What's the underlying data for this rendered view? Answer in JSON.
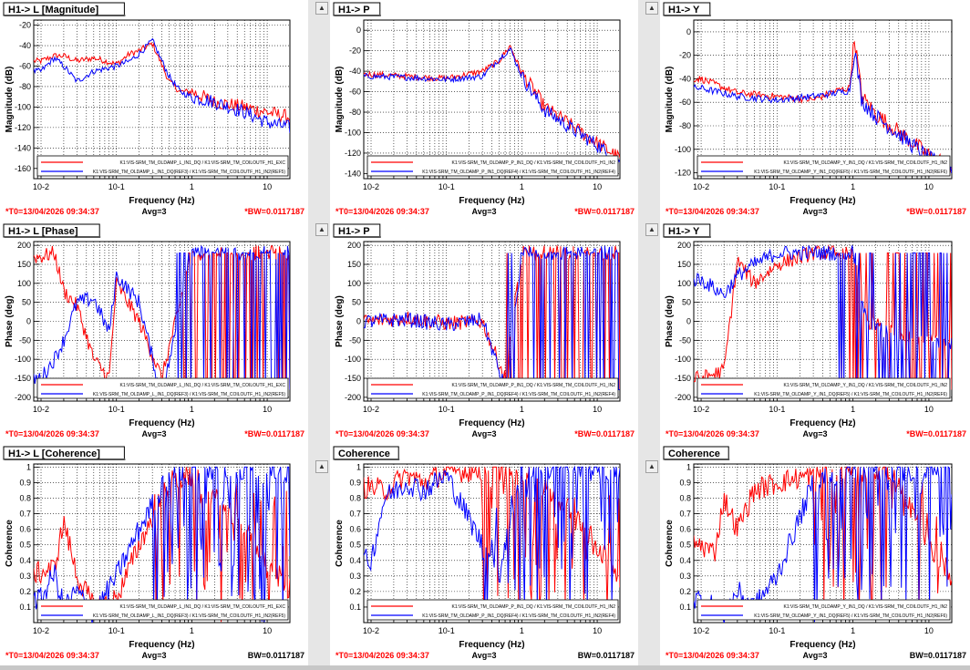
{
  "colors": {
    "red": "#ff0000",
    "blue": "#0000ff",
    "status": "#ff0000",
    "axes": "#000000"
  },
  "status": {
    "t0": "*T0=13/04/2026 09:34:37",
    "avg": "Avg=3",
    "bw_star": "*BW=0.0117187",
    "bw": "BW=0.0117187"
  },
  "panels": [
    {
      "title": "H1-> L [Magnitude]",
      "kind": "mag",
      "ylabel": "Magnitude (dB)",
      "yticks": [
        -20,
        -40,
        -60,
        -80,
        -100,
        -120,
        -140,
        -160
      ],
      "ylim": [
        -170,
        -15
      ],
      "xlabel": "Frequency (Hz)",
      "xticks": [
        "10-2",
        "10-1",
        "1",
        "10"
      ],
      "legend": [
        "K1:VIS-SRM_TM_OLDAMP_L_IN1_DQ / K1:VIS-SRM_TM_COILOUTF_H1_EXC",
        "K1:VIS-SRM_TM_OLDAMP_L_IN1_DQ(REF3) / K1:VIS-SRM_TM_COILOUTF_H1_IN2(REF5)"
      ],
      "bw_key": "bw_star"
    },
    {
      "title": "H1-> P",
      "kind": "mag",
      "ylabel": "Magnitude (dB)",
      "yticks": [
        0,
        -20,
        -40,
        -60,
        -80,
        -100,
        -120,
        -140
      ],
      "ylim": [
        -145,
        10
      ],
      "xlabel": "Frequency (Hz)",
      "xticks": [
        "10-2",
        "10-1",
        "1",
        "10"
      ],
      "legend": [
        "K1:VIS-SRM_TM_OLDAMP_P_IN1_DQ / K1:VIS-SRM_TM_COILOUTF_H1_IN2",
        "K1:VIS-SRM_TM_OLDAMP_P_IN1_DQ(REF4) / K1:VIS-SRM_TM_COILOUTF_H1_IN2(REF4)"
      ],
      "bw_key": "bw_star"
    },
    {
      "title": "H1-> Y",
      "kind": "mag",
      "ylabel": "Magnitude (dB)",
      "yticks": [
        0,
        -20,
        -40,
        -60,
        -80,
        -100,
        -120
      ],
      "ylim": [
        -125,
        10
      ],
      "xlabel": "Frequency (Hz)",
      "xticks": [
        "10-2",
        "10-1",
        "1",
        "10"
      ],
      "legend": [
        "K1:VIS-SRM_TM_OLDAMP_Y_IN1_DQ / K1:VIS-SRM_TM_COILOUTF_H1_IN2",
        "K1:VIS-SRM_TM_OLDAMP_Y_IN1_DQ(REF5) / K1:VIS-SRM_TM_COILOUTF_H1_IN2(REF6)"
      ],
      "bw_key": "bw_star"
    },
    {
      "title": "H1-> L [Phase]",
      "kind": "phase",
      "ylabel": "Phase (deg)",
      "yticks": [
        200,
        150,
        100,
        50,
        0,
        -50,
        -100,
        -150,
        -200
      ],
      "ylim": [
        -210,
        210
      ],
      "xlabel": "Frequency (Hz)",
      "xticks": [
        "10-2",
        "10-1",
        "1",
        "10"
      ],
      "legend": [
        "K1:VIS-SRM_TM_OLDAMP_L_IN1_DQ / K1:VIS-SRM_TM_COILOUTF_H1_EXC",
        "K1:VIS-SRM_TM_OLDAMP_L_IN1_DQ(REF3) / K1:VIS-SRM_TM_COILOUTF_H1_IN2(REF5)"
      ],
      "bw_key": "bw_star"
    },
    {
      "title": "H1-> P",
      "kind": "phase",
      "ylabel": "Phase (deg)",
      "yticks": [
        200,
        150,
        100,
        50,
        0,
        -50,
        -100,
        -150,
        -200
      ],
      "ylim": [
        -210,
        210
      ],
      "xlabel": "Frequency (Hz)",
      "xticks": [
        "10-2",
        "10-1",
        "1",
        "10"
      ],
      "legend": [
        "K1:VIS-SRM_TM_OLDAMP_P_IN1_DQ / K1:VIS-SRM_TM_COILOUTF_H1_IN2",
        "K1:VIS-SRM_TM_OLDAMP_P_IN1_DQ(REF4) / K1:VIS-SRM_TM_COILOUTF_H1_IN2(REF4)"
      ],
      "bw_key": "bw_star"
    },
    {
      "title": "H1-> Y",
      "kind": "phase",
      "ylabel": "Phase (deg)",
      "yticks": [
        200,
        150,
        100,
        50,
        0,
        -50,
        -100,
        -150,
        -200
      ],
      "ylim": [
        -210,
        210
      ],
      "xlabel": "Frequency (Hz)",
      "xticks": [
        "10-2",
        "10-1",
        "1",
        "10"
      ],
      "legend": [
        "K1:VIS-SRM_TM_OLDAMP_Y_IN1_DQ / K1:VIS-SRM_TM_COILOUTF_H1_IN2",
        "K1:VIS-SRM_TM_OLDAMP_Y_IN1_DQ(REF5) / K1:VIS-SRM_TM_COILOUTF_H1_IN2(REF6)"
      ],
      "bw_key": "bw_star"
    },
    {
      "title": "H1-> L [Coherence]",
      "kind": "coh",
      "ylabel": "Coherence",
      "yticks": [
        1,
        0.9,
        0.8,
        0.7,
        0.6,
        0.5,
        0.4,
        0.3,
        0.2,
        0.1
      ],
      "ylim": [
        0,
        1.02
      ],
      "xlabel": "Frequency (Hz)",
      "xticks": [
        "10-2",
        "10-1",
        "1",
        "10"
      ],
      "legend": [
        "K1:VIS-SRM_TM_OLDAMP_L_IN1_DQ / K1:VIS-SRM_TM_COILOUTF_H1_EXC",
        "K1:VIS-SRM_TM_OLDAMP_L_IN1_DQ(REF3) / K1:VIS-SRM_TM_COILOUTF_H1_IN2(REF5)"
      ],
      "bw_key": "bw"
    },
    {
      "title": "Coherence",
      "kind": "coh",
      "ylabel": "Coherence",
      "yticks": [
        1,
        0.9,
        0.8,
        0.7,
        0.6,
        0.5,
        0.4,
        0.3,
        0.2,
        0.1
      ],
      "ylim": [
        0,
        1.02
      ],
      "xlabel": "Frequency (Hz)",
      "xticks": [
        "10-2",
        "10-1",
        "1",
        "10"
      ],
      "legend": [
        "K1:VIS-SRM_TM_OLDAMP_P_IN1_DQ / K1:VIS-SRM_TM_COILOUTF_H1_IN2",
        "K1:VIS-SRM_TM_OLDAMP_P_IN1_DQ(REF4) / K1:VIS-SRM_TM_COILOUTF_H1_IN2(REF4)"
      ],
      "bw_key": "bw"
    },
    {
      "title": "Coherence",
      "kind": "coh",
      "ylabel": "Coherence",
      "yticks": [
        1,
        0.9,
        0.8,
        0.7,
        0.6,
        0.5,
        0.4,
        0.3,
        0.2,
        0.1
      ],
      "ylim": [
        0,
        1.02
      ],
      "xlabel": "Frequency (Hz)",
      "xticks": [
        "10-2",
        "10-1",
        "1",
        "10"
      ],
      "legend": [
        "K1:VIS-SRM_TM_OLDAMP_Y_IN1_DQ / K1:VIS-SRM_TM_COILOUTF_H1_IN2",
        "K1:VIS-SRM_TM_OLDAMP_Y_IN1_DQ(REF5) / K1:VIS-SRM_TM_COILOUTF_H1_IN2(REF6)"
      ],
      "bw_key": "bw"
    }
  ],
  "chart_data": [
    {
      "type": "line",
      "title": "H1-> L [Magnitude]",
      "xlabel": "Frequency (Hz)",
      "ylabel": "Magnitude (dB)",
      "xscale": "log",
      "xlim": [
        0.008,
        20
      ],
      "ylim": [
        -170,
        -15
      ],
      "series": [
        {
          "name": "K1:VIS-SRM_TM_OLDAMP_L_IN1_DQ / K1:VIS-SRM_TM_COILOUTF_H1_EXC",
          "color": "red",
          "x": [
            0.01,
            0.015,
            0.02,
            0.03,
            0.05,
            0.1,
            0.15,
            0.2,
            0.3,
            0.5,
            0.7,
            1,
            2,
            5,
            10,
            20
          ],
          "y": [
            -55,
            -50,
            -50,
            -55,
            -52,
            -58,
            -48,
            -45,
            -38,
            -75,
            -85,
            -85,
            -95,
            -100,
            -105,
            -110
          ]
        },
        {
          "name": "K1:VIS-SRM_TM_OLDAMP_L_IN1_DQ(REF3) / K1:VIS-SRM_TM_COILOUTF_H1_IN2(REF5)",
          "color": "blue",
          "x": [
            0.01,
            0.015,
            0.02,
            0.03,
            0.05,
            0.1,
            0.15,
            0.2,
            0.3,
            0.5,
            0.7,
            1,
            2,
            5,
            10,
            20
          ],
          "y": [
            -65,
            -52,
            -60,
            -75,
            -65,
            -60,
            -55,
            -48,
            -35,
            -70,
            -85,
            -90,
            -95,
            -105,
            -115,
            -120
          ]
        }
      ]
    },
    {
      "type": "line",
      "title": "H1-> P",
      "xlabel": "Frequency (Hz)",
      "ylabel": "Magnitude (dB)",
      "xscale": "log",
      "xlim": [
        0.008,
        20
      ],
      "ylim": [
        -145,
        10
      ],
      "series": [
        {
          "name": "K1:VIS-SRM_TM_OLDAMP_P_IN1_DQ / K1:VIS-SRM_TM_COILOUTF_H1_IN2",
          "color": "red",
          "x": [
            0.01,
            0.03,
            0.1,
            0.3,
            0.5,
            0.7,
            1,
            1.5,
            2,
            5,
            10,
            20
          ],
          "y": [
            -43,
            -45,
            -47,
            -40,
            -30,
            -15,
            -42,
            -60,
            -75,
            -95,
            -110,
            -125
          ]
        },
        {
          "name": "K1:VIS-SRM_TM_OLDAMP_P_IN1_DQ(REF4) / K1:VIS-SRM_TM_COILOUTF_H1_IN2(REF4)",
          "color": "blue",
          "x": [
            0.01,
            0.03,
            0.1,
            0.3,
            0.5,
            0.7,
            1,
            1.5,
            2,
            5,
            10,
            20
          ],
          "y": [
            -45,
            -46,
            -48,
            -45,
            -28,
            -18,
            -45,
            -65,
            -78,
            -98,
            -112,
            -130
          ]
        }
      ]
    },
    {
      "type": "line",
      "title": "H1-> Y",
      "xlabel": "Frequency (Hz)",
      "ylabel": "Magnitude (dB)",
      "xscale": "log",
      "xlim": [
        0.008,
        20
      ],
      "ylim": [
        -125,
        10
      ],
      "series": [
        {
          "name": "K1:VIS-SRM_TM_OLDAMP_Y_IN1_DQ / K1:VIS-SRM_TM_COILOUTF_H1_IN2",
          "color": "red",
          "x": [
            0.01,
            0.03,
            0.1,
            0.3,
            0.6,
            0.9,
            1.05,
            1.3,
            2,
            5,
            10,
            20
          ],
          "y": [
            -40,
            -52,
            -55,
            -58,
            -50,
            -48,
            -5,
            -55,
            -70,
            -90,
            -105,
            -115
          ]
        },
        {
          "name": "K1:VIS-SRM_TM_OLDAMP_Y_IN1_DQ(REF5) / K1:VIS-SRM_TM_COILOUTF_H1_IN2(REF6)",
          "color": "blue",
          "x": [
            0.01,
            0.03,
            0.1,
            0.3,
            0.6,
            0.9,
            1.05,
            1.3,
            2,
            5,
            10,
            20
          ],
          "y": [
            -48,
            -55,
            -58,
            -55,
            -52,
            -50,
            -15,
            -58,
            -72,
            -92,
            -108,
            -118
          ]
        }
      ]
    },
    {
      "type": "line",
      "title": "H1-> L [Phase]",
      "xlabel": "Frequency (Hz)",
      "ylabel": "Phase (deg)",
      "xscale": "log",
      "xlim": [
        0.008,
        20
      ],
      "ylim": [
        -210,
        210
      ],
      "series": [
        {
          "name": "K1:VIS-SRM_TM_OLDAMP_L_IN1_DQ / K1:VIS-SRM_TM_COILOUTF_H1_EXC",
          "color": "red",
          "x": [
            0.01,
            0.015,
            0.02,
            0.03,
            0.05,
            0.08,
            0.1,
            0.2,
            0.4,
            1,
            10,
            20
          ],
          "y": [
            170,
            180,
            80,
            40,
            -100,
            -150,
            100,
            0,
            -150,
            180,
            180,
            180
          ]
        },
        {
          "name": "K1:VIS-SRM_TM_OLDAMP_L_IN1_DQ(REF3) / K1:VIS-SRM_TM_COILOUTF_H1_IN2(REF5)",
          "color": "blue",
          "x": [
            0.01,
            0.015,
            0.02,
            0.03,
            0.05,
            0.08,
            0.1,
            0.2,
            0.4,
            1,
            10,
            20
          ],
          "y": [
            -150,
            -100,
            -50,
            50,
            60,
            -30,
            120,
            50,
            -200,
            180,
            180,
            180
          ]
        }
      ]
    },
    {
      "type": "line",
      "title": "H1-> P",
      "xlabel": "Frequency (Hz)",
      "ylabel": "Phase (deg)",
      "xscale": "log",
      "xlim": [
        0.008,
        20
      ],
      "ylim": [
        -210,
        210
      ],
      "series": [
        {
          "name": "K1:VIS-SRM_TM_OLDAMP_P_IN1_DQ / K1:VIS-SRM_TM_COILOUTF_H1_IN2",
          "color": "red",
          "x": [
            0.01,
            0.03,
            0.1,
            0.3,
            0.6,
            1,
            10,
            20
          ],
          "y": [
            0,
            10,
            -5,
            0,
            -150,
            180,
            180,
            180
          ]
        },
        {
          "name": "K1:VIS-SRM_TM_OLDAMP_P_IN1_DQ(REF4) / K1:VIS-SRM_TM_COILOUTF_H1_IN2(REF4)",
          "color": "blue",
          "x": [
            0.01,
            0.03,
            0.1,
            0.3,
            0.6,
            1,
            10,
            20
          ],
          "y": [
            0,
            5,
            -10,
            5,
            -180,
            180,
            180,
            180
          ]
        }
      ]
    },
    {
      "type": "line",
      "title": "H1-> Y",
      "xlabel": "Frequency (Hz)",
      "ylabel": "Phase (deg)",
      "xscale": "log",
      "xlim": [
        0.008,
        20
      ],
      "ylim": [
        -210,
        210
      ],
      "series": [
        {
          "name": "K1:VIS-SRM_TM_OLDAMP_Y_IN1_DQ / K1:VIS-SRM_TM_COILOUTF_H1_IN2",
          "color": "red",
          "x": [
            0.01,
            0.02,
            0.03,
            0.05,
            0.1,
            0.3,
            1,
            1.5,
            3,
            10,
            20
          ],
          "y": [
            -150,
            -130,
            160,
            100,
            150,
            180,
            180,
            0,
            -20,
            -50,
            -60
          ]
        },
        {
          "name": "K1:VIS-SRM_TM_OLDAMP_Y_IN1_DQ(REF5) / K1:VIS-SRM_TM_COILOUTF_H1_IN2(REF6)",
          "color": "blue",
          "x": [
            0.01,
            0.02,
            0.03,
            0.05,
            0.1,
            0.3,
            1,
            1.5,
            3,
            10,
            20
          ],
          "y": [
            110,
            70,
            120,
            150,
            180,
            180,
            180,
            0,
            -30,
            -60,
            -60
          ]
        }
      ]
    },
    {
      "type": "line",
      "title": "H1-> L [Coherence]",
      "xlabel": "Frequency (Hz)",
      "ylabel": "Coherence",
      "xscale": "log",
      "xlim": [
        0.008,
        20
      ],
      "ylim": [
        0,
        1.02
      ],
      "series": [
        {
          "name": "K1:VIS-SRM_TM_OLDAMP_L_IN1_DQ / K1:VIS-SRM_TM_COILOUTF_H1_EXC",
          "color": "red",
          "x": [
            0.01,
            0.015,
            0.02,
            0.03,
            0.05,
            0.1,
            0.2,
            0.5,
            1,
            5,
            20
          ],
          "y": [
            0.32,
            0.35,
            0.65,
            0.3,
            0.1,
            0.15,
            0.5,
            0.9,
            0.95,
            0.6,
            0.2
          ]
        },
        {
          "name": "K1:VIS-SRM_TM_OLDAMP_L_IN1_DQ(REF3) / K1:VIS-SRM_TM_COILOUTF_H1_IN2(REF5)",
          "color": "blue",
          "x": [
            0.01,
            0.015,
            0.02,
            0.03,
            0.05,
            0.1,
            0.2,
            0.5,
            1,
            5,
            20
          ],
          "y": [
            0.15,
            0.32,
            0.1,
            0.2,
            0.05,
            0.3,
            0.6,
            0.95,
            0.98,
            0.98,
            0.97
          ]
        }
      ]
    },
    {
      "type": "line",
      "title": "Coherence",
      "xlabel": "Frequency (Hz)",
      "ylabel": "Coherence",
      "xscale": "log",
      "xlim": [
        0.008,
        20
      ],
      "ylim": [
        0,
        1.02
      ],
      "series": [
        {
          "name": "K1:VIS-SRM_TM_OLDAMP_P_IN1_DQ / K1:VIS-SRM_TM_COILOUTF_H1_IN2",
          "color": "red",
          "x": [
            0.01,
            0.015,
            0.03,
            0.05,
            0.1,
            0.3,
            0.5,
            1,
            5,
            20
          ],
          "y": [
            0.87,
            0.85,
            0.95,
            0.9,
            0.97,
            0.98,
            0.99,
            0.98,
            0.7,
            0.3
          ]
        },
        {
          "name": "K1:VIS-SRM_TM_OLDAMP_P_IN1_DQ(REF4) / K1:VIS-SRM_TM_COILOUTF_H1_IN2(REF4)",
          "color": "blue",
          "x": [
            0.01,
            0.015,
            0.03,
            0.05,
            0.1,
            0.3,
            0.5,
            1,
            5,
            20
          ],
          "y": [
            0.4,
            0.8,
            0.9,
            0.85,
            0.95,
            0.5,
            0.3,
            0.99,
            0.99,
            0.98
          ]
        }
      ]
    },
    {
      "type": "line",
      "title": "Coherence",
      "xlabel": "Frequency (Hz)",
      "ylabel": "Coherence",
      "xscale": "log",
      "xlim": [
        0.008,
        20
      ],
      "ylim": [
        0,
        1.02
      ],
      "series": [
        {
          "name": "K1:VIS-SRM_TM_OLDAMP_Y_IN1_DQ / K1:VIS-SRM_TM_COILOUTF_H1_IN2",
          "color": "red",
          "x": [
            0.01,
            0.015,
            0.02,
            0.03,
            0.05,
            0.1,
            0.3,
            1,
            3,
            10,
            20
          ],
          "y": [
            0.5,
            0.45,
            0.8,
            0.6,
            0.85,
            0.9,
            0.95,
            0.98,
            0.98,
            0.5,
            0.3
          ]
        },
        {
          "name": "K1:VIS-SRM_TM_OLDAMP_Y_IN1_DQ(REF5) / K1:VIS-SRM_TM_COILOUTF_H1_IN2(REF6)",
          "color": "blue",
          "x": [
            0.01,
            0.015,
            0.02,
            0.03,
            0.05,
            0.1,
            0.3,
            1,
            3,
            10,
            20
          ],
          "y": [
            0.15,
            0.1,
            0.05,
            0.2,
            0.1,
            0.3,
            0.9,
            0.99,
            0.98,
            0.97,
            0.98
          ]
        }
      ]
    }
  ]
}
